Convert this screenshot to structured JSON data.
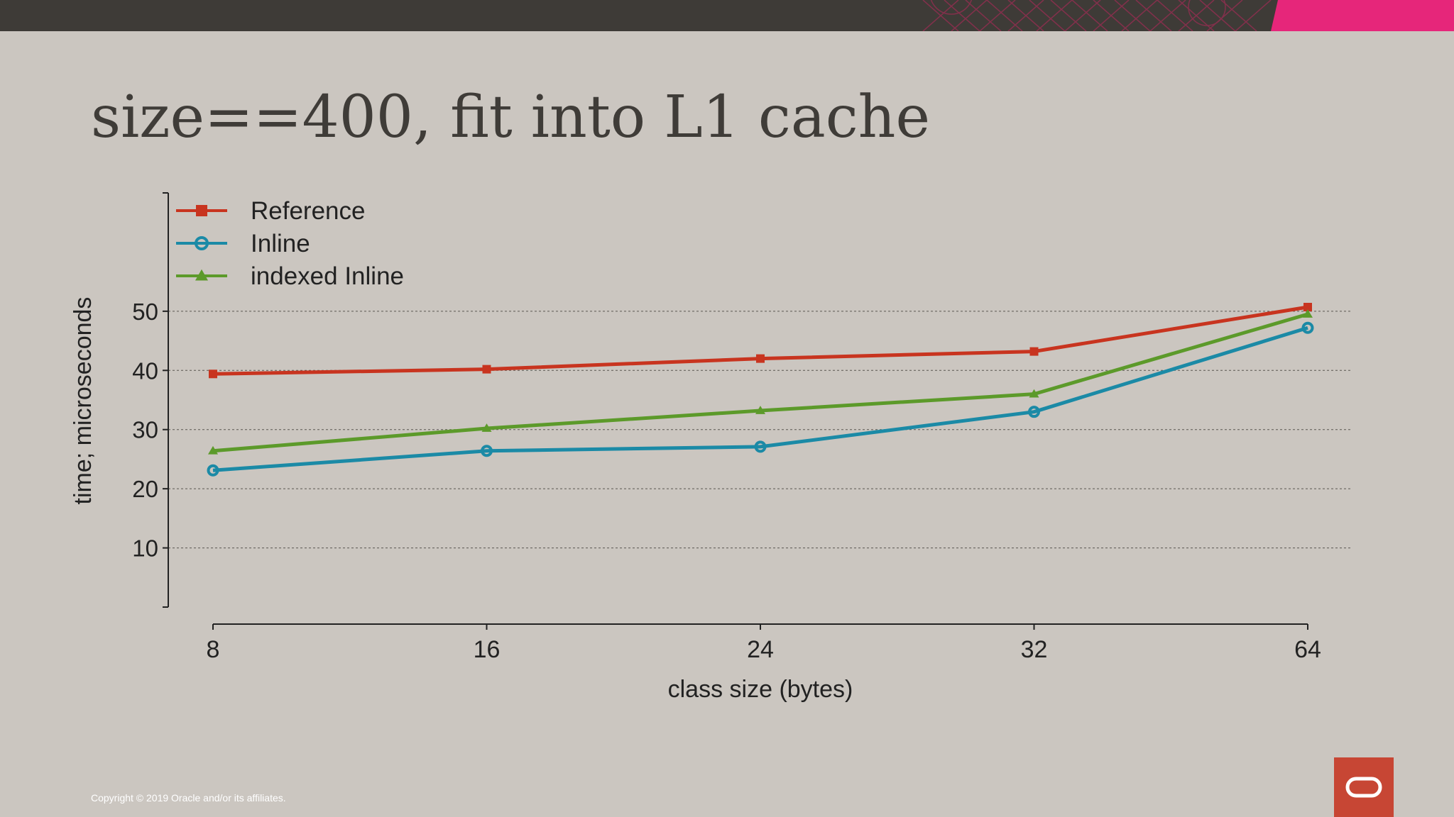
{
  "slide": {
    "title": "size==400, fit into L1 cache",
    "copyright": "Copyright © 2019 Oracle and/or its affiliates."
  },
  "colors": {
    "background": "#cbc6c0",
    "topbar": "#3e3b37",
    "accent_pink": "#e6267a",
    "logo_red": "#c74634"
  },
  "icons": {
    "logo": "oracle-logo-icon"
  },
  "chart_data": {
    "type": "line",
    "title": "",
    "xlabel": "class size (bytes)",
    "ylabel": "time; microseconds",
    "categories": [
      "8",
      "16",
      "24",
      "32",
      "64"
    ],
    "yticks": [
      10,
      20,
      30,
      40,
      50
    ],
    "ylim": [
      0,
      70
    ],
    "grid": "horizontal dotted",
    "legend": "top-left",
    "series": [
      {
        "name": "Reference",
        "color": "#c8341f",
        "marker": "square",
        "values": [
          39.4,
          40.2,
          42.0,
          43.2,
          50.7
        ]
      },
      {
        "name": "Inline",
        "color": "#1b8aa6",
        "marker": "circle",
        "values": [
          23.1,
          26.4,
          27.1,
          33.0,
          47.2
        ]
      },
      {
        "name": "indexed Inline",
        "color": "#5c9a2a",
        "marker": "triangle",
        "values": [
          26.4,
          30.2,
          33.2,
          36.0,
          49.5
        ]
      }
    ]
  }
}
